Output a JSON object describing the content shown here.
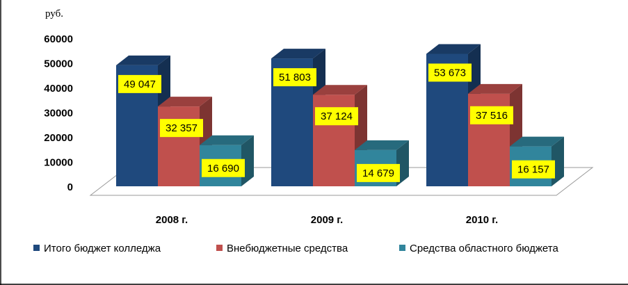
{
  "chart_data": {
    "type": "bar",
    "unit_label": "руб.",
    "categories": [
      "2008 г.",
      "2009 г.",
      "2010 г."
    ],
    "series": [
      {
        "name": "Итого бюджет колледжа",
        "values": [
          49047,
          51803,
          53673
        ],
        "labels": [
          "49 047",
          "51 803",
          "53 673"
        ],
        "color": "#1F497D"
      },
      {
        "name": "Внебюджетные средства",
        "values": [
          32357,
          37124,
          37516
        ],
        "labels": [
          "32 357",
          "37 124",
          "37 516"
        ],
        "color": "#C0504D"
      },
      {
        "name": "Средства областного бюджета",
        "values": [
          16690,
          14679,
          16157
        ],
        "labels": [
          "16 690",
          "14 679",
          "16 157"
        ],
        "color": "#31859C"
      }
    ],
    "ylim": [
      0,
      60000
    ],
    "yticks": [
      "0",
      "10000",
      "20000",
      "30000",
      "40000",
      "50000",
      "60000"
    ],
    "grid": false,
    "legend_position": "bottom",
    "data_label_bg": "#FFFF00",
    "style": "3d-clustered-column"
  }
}
